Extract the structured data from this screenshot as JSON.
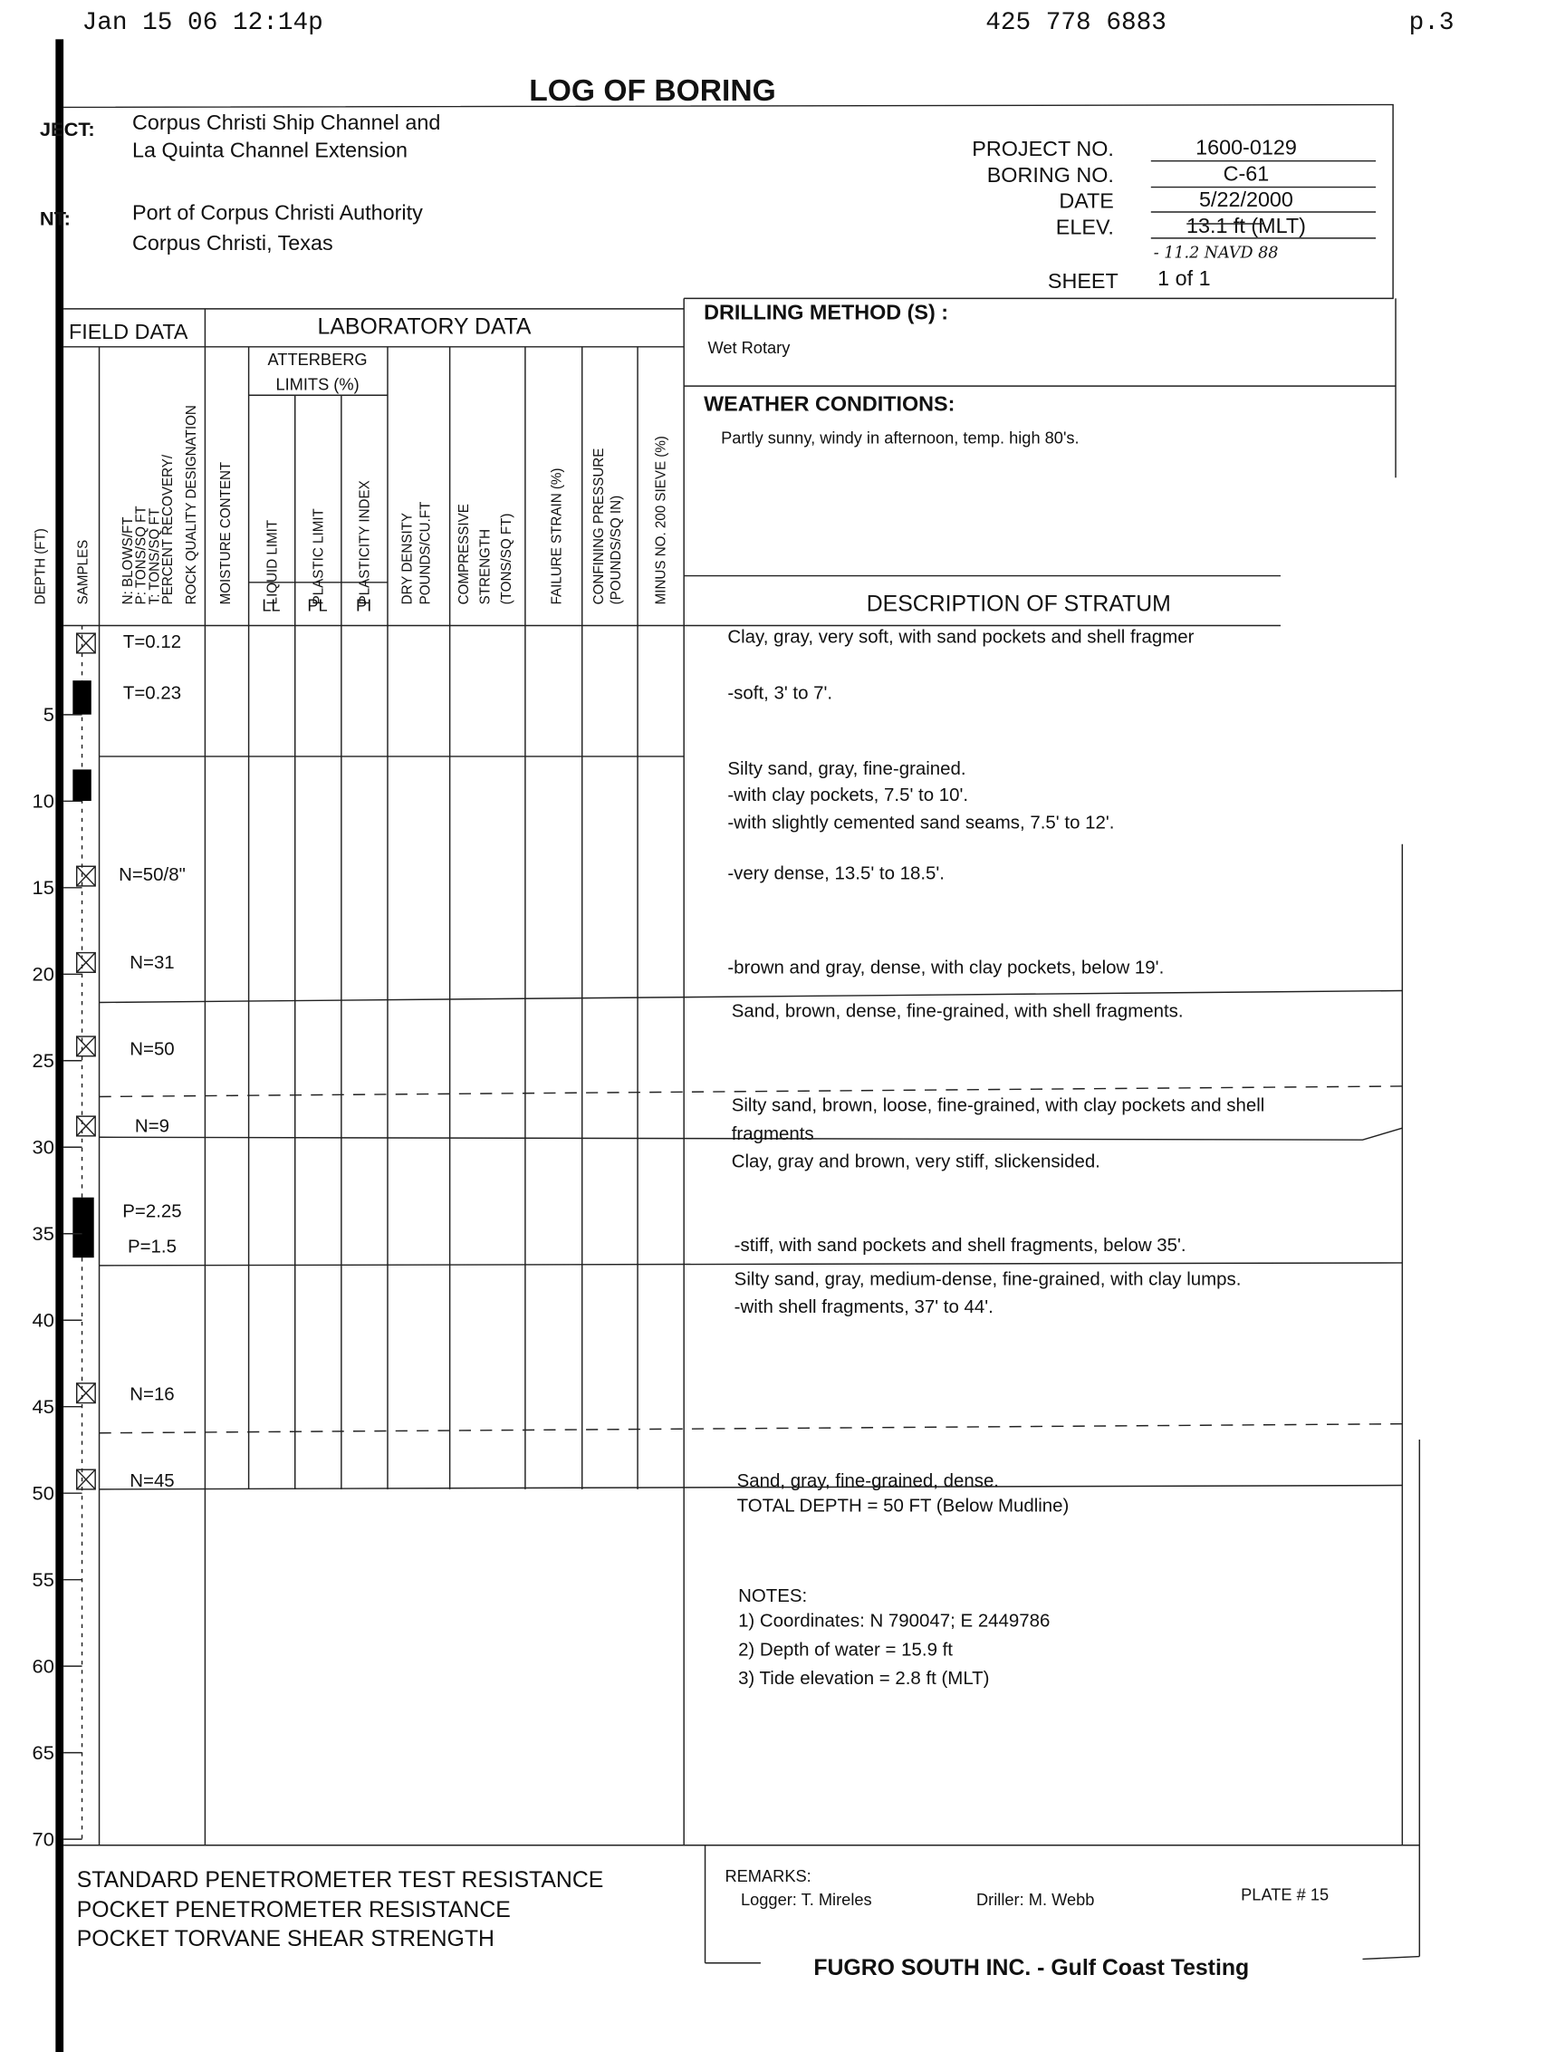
{
  "fax_header": {
    "date_time": "Jan 15 06 12:14p",
    "phone": "425 778 6883",
    "page": "p.3"
  },
  "title": "LOG OF BORING",
  "project": {
    "label": "JECT:",
    "lines": [
      "Corpus Christi Ship Channel and",
      "La Quinta Channel Extension"
    ]
  },
  "client": {
    "label": "NT:",
    "lines": [
      "Port of Corpus Christi Authority",
      "Corpus Christi, Texas"
    ]
  },
  "info": [
    {
      "label": "PROJECT NO.",
      "value": "1600-0129"
    },
    {
      "label": "BORING NO.",
      "value": "C-61"
    },
    {
      "label": "DATE",
      "value": "5/22/2000"
    },
    {
      "label": "ELEV.",
      "value": "13.1 ft (MLT)"
    }
  ],
  "elev_handwritten": "- 11.2   NAVD 88",
  "sheet": {
    "label": "SHEET",
    "value": "1 of 1"
  },
  "headers": {
    "field_data": "FIELD DATA",
    "laboratory_data": "LABORATORY DATA",
    "atterberg": [
      "ATTERBERG",
      "LIMITS (%)"
    ],
    "depth": "DEPTH (FT)",
    "samples": "SAMPLES",
    "field": [
      "N: BLOWS/FT",
      "P: TONS/SQ FT",
      "T: TONS/SQ FT",
      "PERCENT RECOVERY/",
      "ROCK QUALITY DESIGNATION"
    ],
    "moisture": "MOISTURE CONTENT",
    "liquid_limit": "LIQUID LIMIT",
    "plastic_limit": "PLASTIC LIMIT",
    "plasticity_index": "PLASTICITY INDEX",
    "dry_density": [
      "DRY DENSITY",
      "POUNDS/CU.FT"
    ],
    "compressive": [
      "COMPRESSIVE",
      "STRENGTH",
      "(TONS/SQ FT)"
    ],
    "failure_strain": "FAILURE STRAIN (%)",
    "confining": [
      "CONFINING PRESSURE",
      "(POUNDS/SQ IN)"
    ],
    "sieve": "MINUS NO. 200 SIEVE (%)",
    "sub": [
      "LL",
      "PL",
      "PI"
    ],
    "description": "DESCRIPTION OF STRATUM"
  },
  "drilling": {
    "label": "DRILLING METHOD (S) :",
    "value": "Wet Rotary"
  },
  "weather": {
    "label": "WEATHER CONDITIONS:",
    "value": "Partly sunny, windy in afternoon, temp. high 80's."
  },
  "depth_labels": [
    "5",
    "10",
    "15",
    "20",
    "25",
    "30",
    "35",
    "40",
    "45",
    "50",
    "55",
    "60",
    "65",
    "70"
  ],
  "field_values": [
    "T=0.12",
    "T=0.23",
    "N=50/8\"",
    "N=31",
    "N=50",
    "N=9",
    "P=2.25",
    "P=1.5",
    "N=16",
    "N=45"
  ],
  "descriptions": [
    "Clay, gray, very soft, with sand pockets and shell fragmer",
    "-soft, 3' to 7'.",
    "Silty sand, gray, fine-grained.",
    "-with clay pockets, 7.5' to 10'.",
    "-with slightly cemented sand seams, 7.5' to 12'.",
    "-very dense, 13.5' to 18.5'.",
    "-brown and gray, dense, with clay pockets, below 19'.",
    "Sand, brown, dense, fine-grained, with shell fragments.",
    "Silty sand, brown, loose, fine-grained, with clay pockets and shell",
    "fragments",
    "Clay, gray and brown, very stiff, slickensided.",
    "-stiff, with sand pockets and shell fragments, below 35'.",
    "Silty sand, gray, medium-dense, fine-grained, with clay lumps.",
    "-with shell fragments, 37' to 44'.",
    "Sand, gray, fine-grained, dense.",
    "TOTAL DEPTH = 50 FT (Below Mudline)"
  ],
  "notes": {
    "label": "NOTES:",
    "lines": [
      "1) Coordinates: N 790047; E 2449786",
      "2) Depth of water = 15.9 ft",
      "3) Tide elevation = 2.8 ft (MLT)"
    ]
  },
  "legend": [
    "STANDARD PENETROMETER TEST RESISTANCE",
    "POCKET PENETROMETER RESISTANCE",
    "POCKET TORVANE SHEAR STRENGTH"
  ],
  "remarks": {
    "label": "REMARKS:",
    "logger": "Logger: T. Mireles",
    "driller": "Driller: M. Webb",
    "plate": "PLATE # 15"
  },
  "footer": "FUGRO SOUTH INC. - Gulf Coast Testing"
}
